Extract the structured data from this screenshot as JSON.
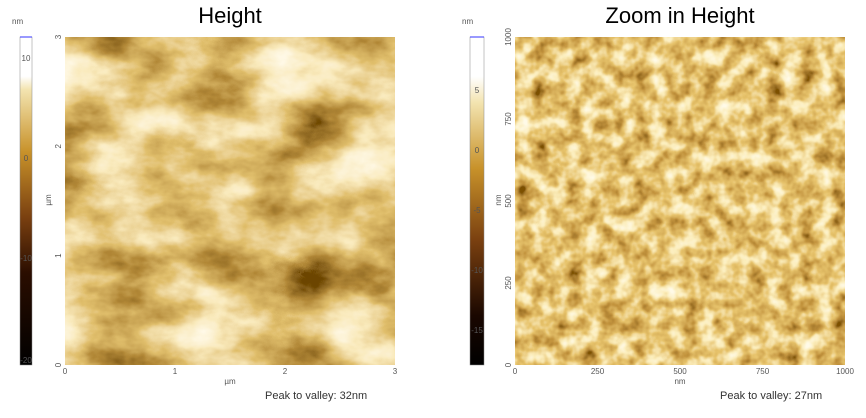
{
  "panels": [
    {
      "title": "Height",
      "colorbar": {
        "unit": "nm",
        "ticks": [
          "10",
          "0",
          "-10",
          "-20"
        ]
      },
      "y_axis": {
        "unit": "µm",
        "ticks": [
          "3",
          "2",
          "1",
          "0"
        ]
      },
      "x_axis": {
        "unit": "µm",
        "ticks": [
          "0",
          "1",
          "2",
          "3"
        ]
      },
      "caption": "Peak to valley: 32nm"
    },
    {
      "title": "Zoom in Height",
      "colorbar": {
        "unit": "nm",
        "ticks": [
          "5",
          "0",
          "-5",
          "-10",
          "-15"
        ]
      },
      "y_axis": {
        "unit": "nm",
        "ticks": [
          "1000",
          "750",
          "500",
          "250",
          "0"
        ]
      },
      "x_axis": {
        "unit": "nm",
        "ticks": [
          "0",
          "250",
          "500",
          "750",
          "1000"
        ]
      },
      "caption": "Peak to valley: 27nm"
    }
  ]
}
